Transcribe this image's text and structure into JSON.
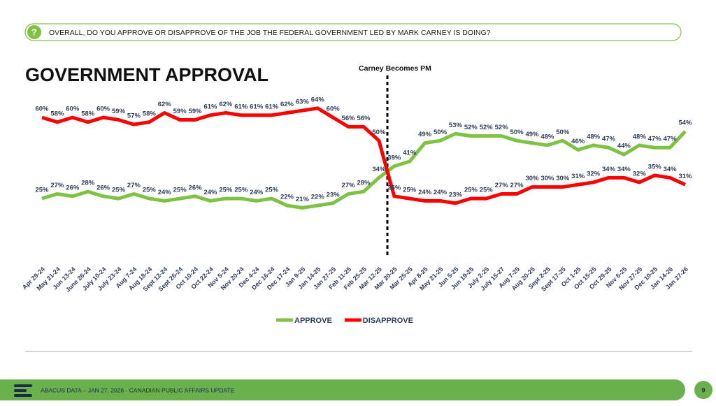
{
  "slide": {
    "question": "OVERALL, DO YOU APPROVE OR DISAPPROVE OF THE JOB THE FEDERAL GOVERNMENT LED BY MARK CARNEY IS DOING?",
    "footer": "ABACUS DATA  – JAN 27, 2026 - CANADIAN PUBLIC AFFAIRS UPDATE",
    "page_number": "9"
  },
  "chart_data": {
    "type": "line",
    "title": "GOVERNMENT APPROVAL",
    "annotation": "Carney Becomes PM",
    "categories": [
      "Apr 29-24",
      "May 21-24",
      "Jun 13-24",
      "June 26-24",
      "July 10-24",
      "July 23-24",
      "Aug 7-24",
      "Aug 18-24",
      "Sept 12-24",
      "Sept 26-24",
      "Oct 10-24",
      "Oct 22-24",
      "Nov 5-24",
      "Nov 20-24",
      "Dec 4-24",
      "Dec 16-24",
      "Dec 17-24",
      "Jan 9-25",
      "Jan 14-25",
      "Jan 27-25",
      "Feb 11-25",
      "Feb 25-25",
      "Mar 12-25",
      "Mar 20-25",
      "Mar 25-25",
      "Apr 8-25",
      "May 21-25",
      "Jun 5-25",
      "Jun 19-25",
      "July 2-25",
      "July 15-27",
      "Aug 7-25",
      "Aug 20-25",
      "Sept 2-25",
      "Sept 17-25",
      "Oct 1-25",
      "Oct 15-25",
      "Oct 29-25",
      "Nov 6-25",
      "Nov 27-25",
      "Dec 10-25",
      "Jan 14-26",
      "Jan 27-26"
    ],
    "ylim": [
      0,
      70
    ],
    "legend": "bottom",
    "series": [
      {
        "name": "APPROVE",
        "color": "#7dc242",
        "values": [
          25,
          27,
          26,
          28,
          26,
          25,
          27,
          25,
          24,
          25,
          26,
          24,
          25,
          25,
          24,
          25,
          22,
          21,
          22,
          23,
          27,
          28,
          34,
          39,
          41,
          49,
          50,
          53,
          52,
          52,
          52,
          50,
          49,
          48,
          50,
          46,
          48,
          47,
          44,
          48,
          47,
          47,
          54
        ],
        "value_labels": [
          "25%",
          "27%",
          "26%",
          "28%",
          "26%",
          "25%",
          "27%",
          "25%",
          "24%",
          "25%",
          "26%",
          "24%",
          "25%",
          "25%",
          "24%",
          "25%",
          "22%",
          "21%",
          "22%",
          "23%",
          "27%",
          "28%",
          "34%",
          "39%",
          "41%",
          "49%",
          "50%",
          "53%",
          "52%",
          "52%",
          "52%",
          "50%",
          "49%",
          "48%",
          "50%",
          "46%",
          "48%",
          "47%",
          "44%",
          "48%",
          "47%",
          "47%",
          "54%"
        ]
      },
      {
        "name": "DISAPPROVE",
        "color": "#ff0000",
        "values": [
          60,
          58,
          60,
          58,
          60,
          59,
          57,
          58,
          62,
          59,
          59,
          61,
          62,
          61,
          61,
          61,
          62,
          63,
          64,
          60,
          56,
          56,
          50,
          26,
          25,
          24,
          24,
          23,
          25,
          25,
          27,
          27,
          30,
          30,
          30,
          31,
          32,
          34,
          34,
          32,
          35,
          34,
          31
        ],
        "value_labels": [
          "60%",
          "58%",
          "60%",
          "58%",
          "60%",
          "59%",
          "57%",
          "58%",
          "62%",
          "59%",
          "59%",
          "61%",
          "62%",
          "61%",
          "61%",
          "61%",
          "62%",
          "63%",
          "64%",
          "60%",
          "56%",
          "56%",
          "50%",
          "26%",
          "25%",
          "24%",
          "24%",
          "23%",
          "25%",
          "25%",
          "27%",
          "27%",
          "30%",
          "30%",
          "30%",
          "31%",
          "32%",
          "34%",
          "34%",
          "32%",
          "35%",
          "34%",
          "31%"
        ]
      }
    ]
  }
}
